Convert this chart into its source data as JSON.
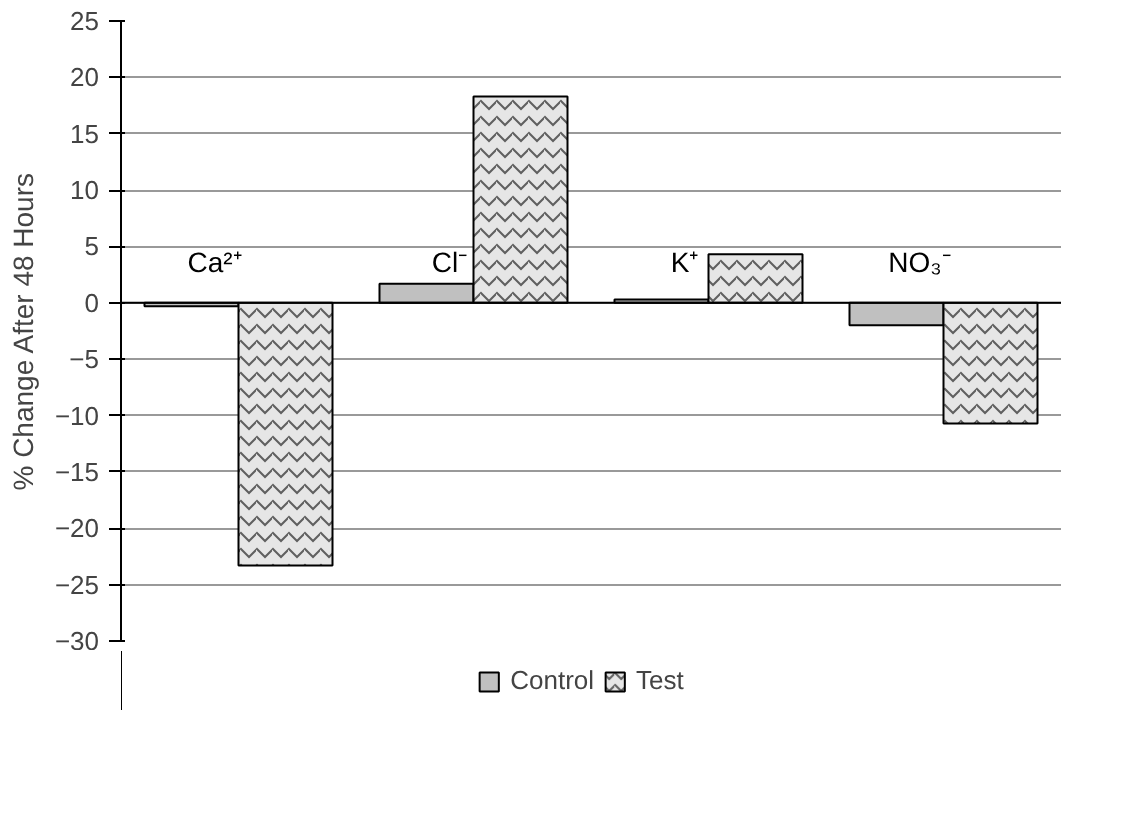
{
  "chart_data": {
    "type": "bar",
    "ylabel": "% Change After 48 Hours",
    "categories": [
      "Ca²⁺",
      "Cl⁻",
      "K⁺",
      "NO₃⁻"
    ],
    "series": [
      {
        "name": "Control",
        "color": "#c0c0c0",
        "values": [
          -0.3,
          1.7,
          0.3,
          -2
        ]
      },
      {
        "name": "Test",
        "color": "#e6e6e6",
        "values": [
          -23.3,
          18.3,
          4.3,
          -10.7
        ]
      }
    ],
    "ylim": [
      -30,
      25
    ],
    "yticks": [
      -30,
      -25,
      -20,
      -15,
      -10,
      -5,
      0,
      5,
      10,
      15,
      20,
      25
    ],
    "grid": "y",
    "legend": "bottom"
  }
}
